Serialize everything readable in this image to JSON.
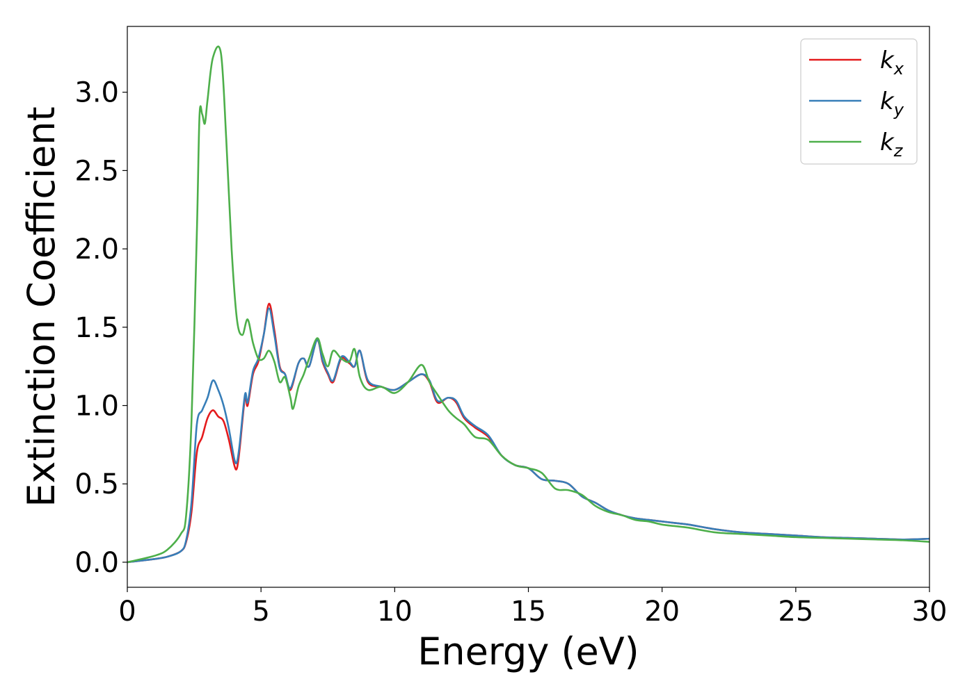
{
  "chart_data": {
    "type": "line",
    "title": "",
    "xlabel": "Energy (eV)",
    "ylabel": "Extinction Coefficient",
    "xlim": [
      0,
      30
    ],
    "ylim": [
      -0.16,
      3.42
    ],
    "xticks": [
      0,
      5,
      10,
      15,
      20,
      25,
      30
    ],
    "xtick_labels": [
      "0",
      "5",
      "10",
      "15",
      "20",
      "25",
      "30"
    ],
    "yticks": [
      0.0,
      0.5,
      1.0,
      1.5,
      2.0,
      2.5,
      3.0
    ],
    "ytick_labels": [
      "0.0",
      "0.5",
      "1.0",
      "1.5",
      "2.0",
      "2.5",
      "3.0"
    ],
    "grid": false,
    "legend_position": "top-right",
    "series": [
      {
        "name": "k",
        "subscript": "x",
        "color": "#e41a1c",
        "x": [
          0,
          1,
          1.5,
          2.0,
          2.2,
          2.4,
          2.6,
          2.8,
          3.0,
          3.2,
          3.4,
          3.6,
          3.8,
          4.0,
          4.1,
          4.2,
          4.4,
          4.5,
          4.7,
          4.9,
          5.1,
          5.3,
          5.5,
          5.7,
          5.9,
          6.1,
          6.4,
          6.6,
          6.8,
          7.1,
          7.3,
          7.5,
          7.7,
          8.0,
          8.3,
          8.5,
          8.7,
          9.0,
          9.5,
          10.0,
          10.5,
          11.0,
          11.3,
          11.6,
          12.0,
          12.3,
          12.6,
          13.0,
          13.5,
          14.0,
          14.5,
          15.0,
          15.5,
          16.0,
          16.5,
          17.0,
          17.5,
          18.0,
          18.5,
          19.0,
          19.5,
          20.0,
          20.5,
          21.0,
          22.0,
          23.0,
          24.0,
          25.0,
          26.0,
          27.0,
          28.0,
          29.0,
          30.0
        ],
        "y": [
          0.0,
          0.02,
          0.035,
          0.07,
          0.13,
          0.32,
          0.7,
          0.8,
          0.92,
          0.97,
          0.93,
          0.9,
          0.78,
          0.62,
          0.6,
          0.72,
          1.05,
          1.0,
          1.2,
          1.28,
          1.45,
          1.65,
          1.48,
          1.25,
          1.2,
          1.1,
          1.27,
          1.3,
          1.25,
          1.42,
          1.28,
          1.2,
          1.15,
          1.3,
          1.27,
          1.25,
          1.35,
          1.15,
          1.12,
          1.1,
          1.15,
          1.2,
          1.15,
          1.02,
          1.05,
          1.02,
          0.92,
          0.86,
          0.8,
          0.68,
          0.62,
          0.6,
          0.53,
          0.52,
          0.5,
          0.42,
          0.38,
          0.33,
          0.3,
          0.28,
          0.27,
          0.26,
          0.25,
          0.24,
          0.21,
          0.19,
          0.18,
          0.17,
          0.16,
          0.155,
          0.15,
          0.145,
          0.15
        ]
      },
      {
        "name": "k",
        "subscript": "y",
        "color": "#377eb8",
        "x": [
          0,
          1,
          1.5,
          2.0,
          2.2,
          2.4,
          2.6,
          2.8,
          3.0,
          3.2,
          3.4,
          3.6,
          3.8,
          4.0,
          4.1,
          4.2,
          4.4,
          4.5,
          4.7,
          4.9,
          5.1,
          5.3,
          5.5,
          5.7,
          5.9,
          6.1,
          6.4,
          6.6,
          6.8,
          7.1,
          7.3,
          7.5,
          7.7,
          8.0,
          8.3,
          8.5,
          8.7,
          9.0,
          9.5,
          10.0,
          10.5,
          11.0,
          11.3,
          11.6,
          12.0,
          12.3,
          12.6,
          13.0,
          13.5,
          14.0,
          14.5,
          15.0,
          15.5,
          16.0,
          16.5,
          17.0,
          17.5,
          18.0,
          18.5,
          19.0,
          19.5,
          20.0,
          20.5,
          21.0,
          22.0,
          23.0,
          24.0,
          25.0,
          26.0,
          27.0,
          28.0,
          29.0,
          30.0
        ],
        "y": [
          0.0,
          0.02,
          0.035,
          0.07,
          0.14,
          0.38,
          0.88,
          0.97,
          1.05,
          1.16,
          1.1,
          1.0,
          0.85,
          0.66,
          0.64,
          0.75,
          1.07,
          1.02,
          1.22,
          1.3,
          1.45,
          1.62,
          1.45,
          1.24,
          1.2,
          1.11,
          1.27,
          1.3,
          1.25,
          1.42,
          1.29,
          1.21,
          1.16,
          1.31,
          1.28,
          1.25,
          1.35,
          1.16,
          1.12,
          1.1,
          1.15,
          1.2,
          1.16,
          1.03,
          1.05,
          1.03,
          0.93,
          0.87,
          0.81,
          0.68,
          0.62,
          0.6,
          0.53,
          0.52,
          0.5,
          0.42,
          0.38,
          0.33,
          0.3,
          0.28,
          0.27,
          0.26,
          0.25,
          0.24,
          0.21,
          0.19,
          0.18,
          0.17,
          0.16,
          0.155,
          0.15,
          0.145,
          0.15
        ]
      },
      {
        "name": "k",
        "subscript": "z",
        "color": "#4daf4a",
        "x": [
          0,
          1,
          1.5,
          2.0,
          2.2,
          2.4,
          2.6,
          2.7,
          2.8,
          2.9,
          3.0,
          3.2,
          3.5,
          3.7,
          3.9,
          4.1,
          4.3,
          4.5,
          4.7,
          4.9,
          5.1,
          5.3,
          5.5,
          5.7,
          5.9,
          6.1,
          6.2,
          6.4,
          6.6,
          6.8,
          7.1,
          7.3,
          7.5,
          7.7,
          8.0,
          8.3,
          8.5,
          8.7,
          9.0,
          9.5,
          10.0,
          10.5,
          11.0,
          11.3,
          11.6,
          12.0,
          12.3,
          12.6,
          13.0,
          13.5,
          14.0,
          14.5,
          15.0,
          15.5,
          16.0,
          16.5,
          17.0,
          17.5,
          18.0,
          18.5,
          19.0,
          19.5,
          20.0,
          20.5,
          21.0,
          22.0,
          23.0,
          24.0,
          25.0,
          26.0,
          27.0,
          28.0,
          29.0,
          30.0
        ],
        "y": [
          0.0,
          0.04,
          0.08,
          0.18,
          0.3,
          0.9,
          2.1,
          2.85,
          2.86,
          2.8,
          2.95,
          3.22,
          3.25,
          2.7,
          2.0,
          1.55,
          1.45,
          1.55,
          1.4,
          1.3,
          1.3,
          1.35,
          1.28,
          1.15,
          1.18,
          1.05,
          0.98,
          1.12,
          1.2,
          1.3,
          1.43,
          1.33,
          1.25,
          1.35,
          1.3,
          1.28,
          1.36,
          1.18,
          1.1,
          1.12,
          1.08,
          1.15,
          1.26,
          1.15,
          1.07,
          0.97,
          0.92,
          0.88,
          0.8,
          0.78,
          0.68,
          0.62,
          0.6,
          0.57,
          0.47,
          0.46,
          0.43,
          0.36,
          0.32,
          0.3,
          0.27,
          0.26,
          0.24,
          0.23,
          0.22,
          0.19,
          0.18,
          0.17,
          0.16,
          0.155,
          0.15,
          0.145,
          0.14,
          0.13
        ]
      }
    ]
  }
}
